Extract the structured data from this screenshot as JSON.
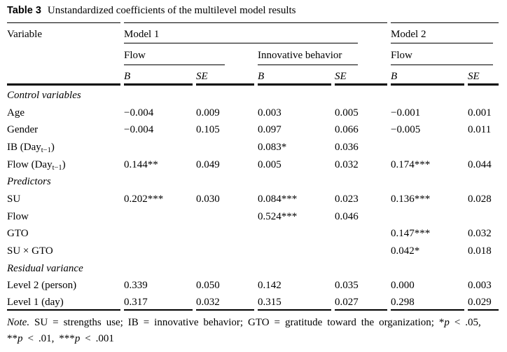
{
  "title": {
    "label": "Table 3",
    "caption": "Unstandardized coefficients of the multilevel model results"
  },
  "table": {
    "col_headers": {
      "variable": "Variable",
      "model1": "Model 1",
      "model2": "Model 2",
      "subgroups": [
        "Flow",
        "Innovative behavior",
        "Flow"
      ],
      "stat_headers": [
        "B",
        "SE",
        "B",
        "SE",
        "B",
        "SE"
      ]
    },
    "rows": [
      {
        "type": "section",
        "label": "Control variables"
      },
      {
        "type": "data",
        "label": "Age",
        "cells": [
          "−0.004",
          "0.009",
          "0.003",
          "0.005",
          "−0.001",
          "0.001"
        ]
      },
      {
        "type": "data",
        "label": "Gender",
        "cells": [
          "−0.004",
          "0.105",
          "0.097",
          "0.066",
          "−0.005",
          "0.011"
        ]
      },
      {
        "type": "data",
        "label": "IB (Day_[t−1])",
        "cells": [
          "",
          "",
          "0.083*",
          "0.036",
          "",
          ""
        ]
      },
      {
        "type": "data",
        "label": "Flow (Day_[t−1])",
        "cells": [
          "0.144**",
          "0.049",
          "0.005",
          "0.032",
          "0.174***",
          "0.044"
        ]
      },
      {
        "type": "section",
        "label": "Predictors"
      },
      {
        "type": "data",
        "label": "SU",
        "cells": [
          "0.202***",
          "0.030",
          "0.084***",
          "0.023",
          "0.136***",
          "0.028"
        ]
      },
      {
        "type": "data",
        "label": "Flow",
        "cells": [
          "",
          "",
          "0.524***",
          "0.046",
          "",
          ""
        ]
      },
      {
        "type": "data",
        "label": "GTO",
        "cells": [
          "",
          "",
          "",
          "",
          "0.147***",
          "0.032"
        ]
      },
      {
        "type": "data",
        "label": "SU × GTO",
        "cells": [
          "",
          "",
          "",
          "",
          "0.042*",
          "0.018"
        ]
      },
      {
        "type": "section",
        "label": "Residual variance"
      },
      {
        "type": "data",
        "label": "Level 2 (person)",
        "cells": [
          "0.339",
          "0.050",
          "0.142",
          "0.035",
          "0.000",
          "0.003"
        ]
      },
      {
        "type": "data",
        "label": "Level 1 (day)",
        "cells": [
          "0.317",
          "0.032",
          "0.315",
          "0.027",
          "0.298",
          "0.029"
        ]
      }
    ]
  },
  "note": {
    "segments": [
      {
        "text": "Note.",
        "italic": true
      },
      {
        "text": " SU = strengths use; IB = innovative behavior; GTO = gratitude toward the organization; *",
        "italic": false
      },
      {
        "text": "p",
        "italic": true
      },
      {
        "text": " < .05,",
        "italic": false
      },
      {
        "br": true
      },
      {
        "text": "**",
        "italic": false
      },
      {
        "text": "p",
        "italic": true
      },
      {
        "text": " < .01, ***",
        "italic": false
      },
      {
        "text": "p",
        "italic": true
      },
      {
        "text": " < .001",
        "italic": false
      }
    ]
  }
}
